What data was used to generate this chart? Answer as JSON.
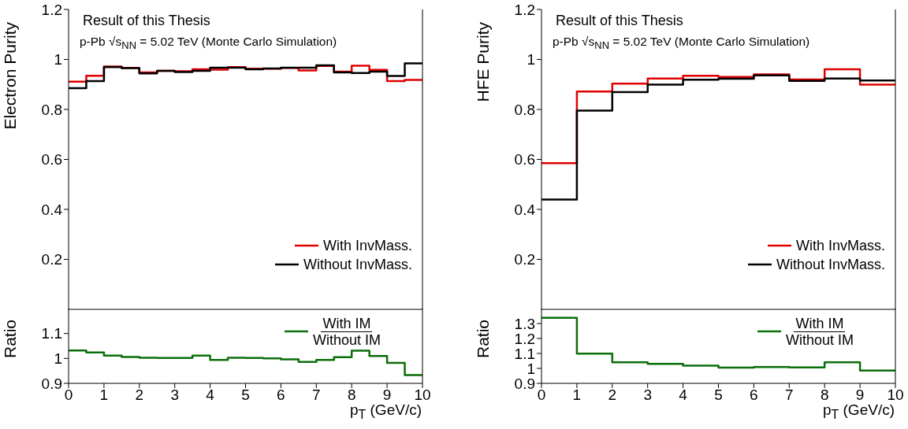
{
  "chart_data": [
    {
      "type": "histogram",
      "ylabel": "Electron Purity",
      "annotations": [
        "Result of this Thesis",
        "p-Pb √s$_{NN}$ = 5.02 TeV (Monte Carlo Simulation)"
      ],
      "bins": [
        0,
        0.5,
        1,
        1.5,
        2,
        2.5,
        3,
        3.5,
        4,
        4.5,
        5,
        5.5,
        6,
        6.5,
        7,
        7.5,
        8,
        8.5,
        9,
        9.5,
        10
      ],
      "series": [
        {
          "name": "With InvMass.",
          "color": "#e00000",
          "values": [
            0.911,
            0.935,
            0.972,
            0.966,
            0.948,
            0.954,
            0.953,
            0.961,
            0.959,
            0.969,
            0.963,
            0.963,
            0.966,
            0.956,
            0.974,
            0.951,
            0.975,
            0.958,
            0.913,
            0.918
          ]
        },
        {
          "name": "Without InvMass.",
          "color": "#000000",
          "values": [
            0.885,
            0.913,
            0.969,
            0.965,
            0.944,
            0.954,
            0.95,
            0.954,
            0.967,
            0.967,
            0.961,
            0.964,
            0.967,
            0.967,
            0.976,
            0.948,
            0.946,
            0.951,
            0.934,
            0.984
          ]
        }
      ],
      "xlim": [
        0,
        10
      ],
      "xticks": [
        0,
        1,
        2,
        3,
        4,
        5,
        6,
        7,
        8,
        9,
        10
      ],
      "ylim": [
        0,
        1.2
      ],
      "yticks": [
        0.2,
        0.4,
        0.6,
        0.8,
        1,
        1.2
      ],
      "legend": "bottom right",
      "tick_labels": "y"
    },
    {
      "type": "histogram",
      "ylabel": "HFE Purity",
      "annotations": [
        "Result of this Thesis",
        "p-Pb √s$_{NN}$ = 5.02 TeV (Monte Carlo Simulation)"
      ],
      "bins": [
        0,
        1,
        2,
        3,
        4,
        5,
        6,
        7,
        8,
        9,
        10
      ],
      "series": [
        {
          "name": "With InvMass.",
          "color": "#e00000",
          "values": [
            0.585,
            0.872,
            0.903,
            0.924,
            0.935,
            0.93,
            0.94,
            0.92,
            0.961,
            0.899
          ]
        },
        {
          "name": "Without InvMass.",
          "color": "#000000",
          "values": [
            0.439,
            0.795,
            0.869,
            0.899,
            0.919,
            0.923,
            0.936,
            0.914,
            0.924,
            0.916
          ]
        }
      ],
      "xlim": [
        0,
        10
      ],
      "xticks": [
        0,
        1,
        2,
        3,
        4,
        5,
        6,
        7,
        8,
        9,
        10
      ],
      "ylim": [
        0,
        1.2
      ],
      "yticks": [
        0.2,
        0.4,
        0.6,
        0.8,
        1,
        1.2
      ],
      "legend": "bottom right",
      "tick_labels": "y"
    },
    {
      "type": "histogram",
      "xlabel": "p$_{T}$ (GeV/c)",
      "ylabel": "Ratio",
      "bins": [
        0,
        0.5,
        1,
        1.5,
        2,
        2.5,
        3,
        3.5,
        4,
        4.5,
        5,
        5.5,
        6,
        6.5,
        7,
        7.5,
        8,
        8.5,
        9,
        9.5,
        10
      ],
      "series": [
        {
          "name": "With IM\nWithout IM",
          "color": "#0a6e0a",
          "values": [
            1.032,
            1.024,
            1.011,
            1.006,
            1.003,
            1.002,
            1.002,
            1.011,
            0.994,
            1.003,
            1.002,
            1.0,
            0.996,
            0.986,
            0.994,
            1.005,
            1.031,
            1.01,
            0.982,
            0.933
          ]
        }
      ],
      "xlim": [
        0,
        10
      ],
      "xticks": [
        0,
        1,
        2,
        3,
        4,
        5,
        6,
        7,
        8,
        9,
        10
      ],
      "ylim": [
        0.9,
        1.2
      ],
      "yticks": [
        0.9,
        1,
        1.1
      ],
      "legend": "top right"
    },
    {
      "type": "histogram",
      "xlabel": "p$_{T}$ (GeV/c)",
      "ylabel": "Ratio",
      "bins": [
        0,
        1,
        2,
        3,
        4,
        5,
        6,
        7,
        8,
        9,
        10
      ],
      "series": [
        {
          "name": "With IM\nWithout IM",
          "color": "#0a6e0a",
          "values": [
            1.338,
            1.099,
            1.041,
            1.03,
            1.018,
            1.005,
            1.009,
            1.007,
            1.041,
            0.986
          ]
        }
      ],
      "xlim": [
        0,
        10
      ],
      "xticks": [
        0,
        1,
        2,
        3,
        4,
        5,
        6,
        7,
        8,
        9,
        10
      ],
      "ylim": [
        0.9,
        1.4
      ],
      "yticks": [
        0.9,
        1,
        1.1,
        1.2,
        1.3
      ],
      "legend": "top right"
    }
  ]
}
